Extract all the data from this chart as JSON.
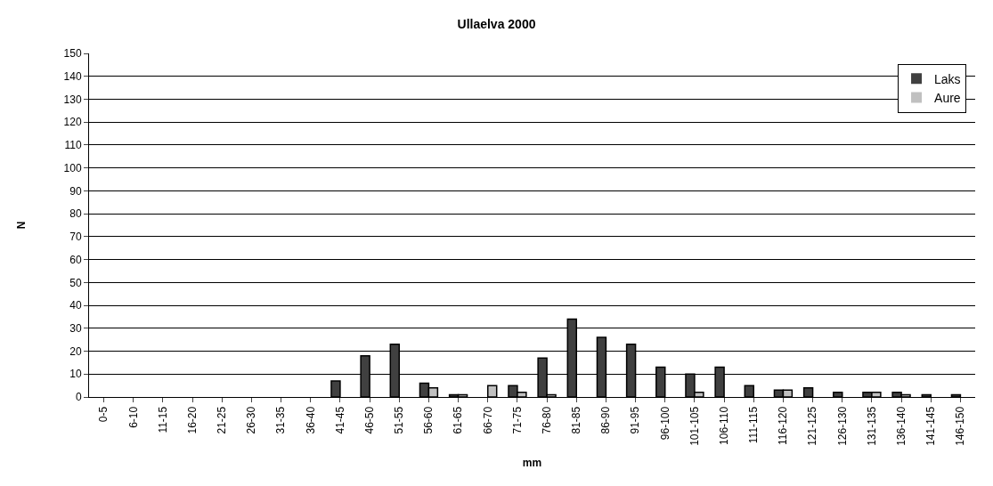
{
  "chart_data": {
    "type": "bar",
    "title": "Ullaelva 2000",
    "xlabel": "mm",
    "ylabel": "N",
    "categories": [
      "0-5",
      "6-10",
      "11-15",
      "16-20",
      "21-25",
      "26-30",
      "31-35",
      "36-40",
      "41-45",
      "46-50",
      "51-55",
      "56-60",
      "61-65",
      "66-70",
      "71-75",
      "76-80",
      "81-85",
      "86-90",
      "91-95",
      "96-100",
      "101-105",
      "106-110",
      "111-115",
      "116-120",
      "121-125",
      "126-130",
      "131-135",
      "136-140",
      "141-145",
      "146-150"
    ],
    "series": [
      {
        "name": "Laks",
        "color": "#404040",
        "values": [
          0,
          0,
          0,
          0,
          0,
          0,
          0,
          0,
          7,
          18,
          23,
          6,
          1,
          0,
          5,
          17,
          34,
          26,
          23,
          13,
          10,
          13,
          5,
          3,
          4,
          2,
          2,
          2,
          1,
          1
        ]
      },
      {
        "name": "Aure",
        "color": "#c0c0c0",
        "values": [
          0,
          0,
          0,
          0,
          0,
          0,
          0,
          0,
          0,
          0,
          0,
          4,
          1,
          5,
          2,
          1,
          0,
          0,
          0,
          0,
          2,
          0,
          0,
          3,
          0,
          0,
          2,
          1,
          0,
          0
        ]
      }
    ],
    "ylim": [
      0,
      150
    ],
    "yticks": [
      0,
      10,
      20,
      30,
      40,
      50,
      60,
      70,
      80,
      90,
      100,
      110,
      120,
      130,
      140,
      150
    ],
    "grid": "y",
    "legend": "top right"
  }
}
